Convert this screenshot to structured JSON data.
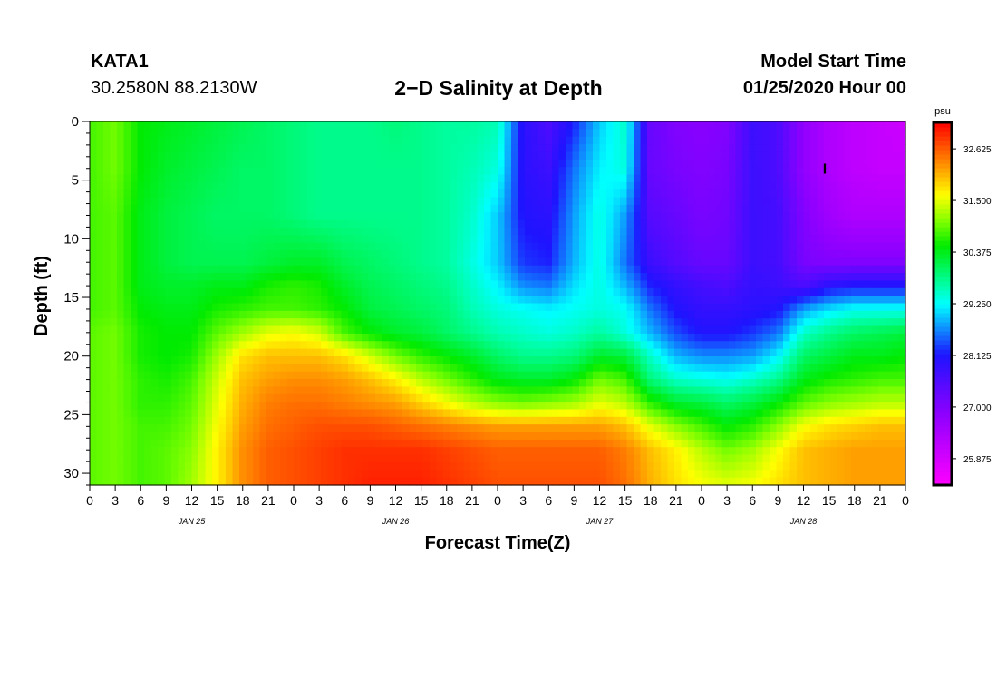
{
  "header": {
    "station": "KATA1",
    "coordinates": "30.2580N 88.2130W",
    "title": "2−D Salinity at Depth",
    "model_start_label": "Model Start Time",
    "model_start_value": "01/25/2020 Hour 00"
  },
  "chart_data": {
    "type": "heatmap",
    "title": "2−D Salinity at Depth",
    "xlabel": "Forecast Time(Z)",
    "ylabel": "Depth (ft)",
    "x_range_hours": [
      0,
      96
    ],
    "y_range_ft": [
      0,
      31
    ],
    "y_ticks": [
      0,
      5,
      10,
      15,
      20,
      25,
      30
    ],
    "x_tick_labels": [
      "0",
      "3",
      "6",
      "9",
      "12",
      "15",
      "18",
      "21",
      "0",
      "3",
      "6",
      "9",
      "12",
      "15",
      "18",
      "21",
      "0",
      "3",
      "6",
      "9",
      "12",
      "15",
      "18",
      "21",
      "0",
      "3",
      "6",
      "9",
      "12",
      "15",
      "18",
      "21",
      "0"
    ],
    "day_labels": [
      {
        "label": "JAN 25",
        "hour": 12
      },
      {
        "label": "JAN 26",
        "hour": 36
      },
      {
        "label": "JAN 27",
        "hour": 60
      },
      {
        "label": "JAN 28",
        "hour": 84
      }
    ],
    "colorbar": {
      "unit": "psu",
      "range": [
        25.3,
        33.2
      ],
      "tick_labels": [
        "32.625",
        "31.500",
        "30.375",
        "29.250",
        "28.125",
        "27.000",
        "25.875"
      ],
      "tick_values": [
        32.625,
        31.5,
        30.375,
        29.25,
        28.125,
        27.0,
        25.875
      ]
    },
    "time_hours": [
      0,
      3,
      6,
      9,
      12,
      15,
      18,
      21,
      24,
      27,
      30,
      33,
      36,
      39,
      42,
      45,
      48,
      51,
      54,
      57,
      60,
      63,
      66,
      69,
      72,
      75,
      78,
      81,
      84,
      87,
      90,
      93,
      96
    ],
    "depths_ft": [
      0,
      4,
      8,
      12,
      14,
      16,
      18,
      20,
      22,
      24,
      26,
      28,
      31
    ],
    "salinity_psu": [
      [
        30.8,
        31.0,
        30.5,
        30.4,
        30.3,
        30.2,
        30.1,
        30.0,
        29.9,
        29.8,
        29.8,
        29.8,
        29.9,
        29.8,
        29.7,
        29.7,
        29.6,
        28.0,
        27.6,
        28.2,
        29.0,
        29.5,
        27.3,
        27.0,
        26.9,
        27.0,
        27.8,
        27.6,
        26.8,
        26.4,
        26.2,
        26.1,
        26.0
      ],
      [
        30.8,
        31.0,
        30.5,
        30.3,
        30.2,
        30.1,
        30.0,
        30.0,
        29.9,
        29.8,
        29.8,
        29.8,
        29.8,
        29.8,
        29.7,
        29.6,
        29.4,
        28.0,
        27.8,
        28.6,
        29.2,
        29.4,
        27.3,
        27.1,
        27.0,
        27.1,
        27.8,
        27.6,
        26.8,
        26.4,
        26.2,
        26.1,
        26.1
      ],
      [
        30.8,
        30.9,
        30.4,
        30.2,
        30.1,
        30.0,
        30.0,
        30.0,
        29.9,
        29.8,
        29.8,
        29.8,
        29.8,
        29.8,
        29.7,
        29.5,
        29.0,
        28.1,
        28.0,
        28.8,
        29.4,
        28.8,
        27.5,
        27.3,
        27.1,
        27.2,
        27.8,
        27.7,
        27.0,
        26.6,
        26.4,
        26.4,
        26.4
      ],
      [
        30.8,
        30.9,
        30.4,
        30.2,
        30.1,
        30.1,
        30.1,
        30.2,
        30.3,
        30.3,
        30.1,
        30.0,
        29.9,
        29.8,
        29.7,
        29.4,
        29.0,
        28.3,
        28.2,
        28.9,
        29.4,
        28.6,
        27.8,
        27.5,
        27.3,
        27.3,
        27.8,
        27.7,
        27.1,
        27.0,
        27.0,
        27.0,
        27.0
      ],
      [
        30.8,
        30.9,
        30.4,
        30.3,
        30.3,
        30.4,
        30.4,
        30.6,
        30.7,
        30.6,
        30.3,
        30.1,
        30.0,
        29.9,
        29.8,
        29.5,
        29.2,
        28.7,
        28.6,
        29.1,
        29.4,
        28.9,
        28.2,
        27.9,
        27.7,
        27.6,
        27.9,
        27.8,
        27.6,
        28.0,
        28.1,
        28.1,
        28.1
      ],
      [
        30.8,
        30.9,
        30.5,
        30.4,
        30.4,
        30.6,
        30.7,
        30.8,
        30.8,
        30.7,
        30.5,
        30.2,
        30.1,
        30.0,
        29.9,
        29.6,
        29.4,
        29.3,
        29.2,
        29.3,
        29.4,
        29.3,
        28.6,
        28.1,
        27.9,
        27.9,
        28.0,
        28.1,
        28.8,
        29.1,
        29.3,
        29.3,
        29.3
      ],
      [
        30.9,
        31.0,
        30.6,
        30.5,
        30.5,
        30.9,
        31.2,
        31.5,
        31.6,
        31.4,
        30.8,
        30.5,
        30.3,
        30.2,
        30.0,
        29.8,
        29.6,
        29.5,
        29.4,
        29.5,
        29.7,
        29.4,
        28.9,
        28.4,
        28.1,
        28.1,
        28.3,
        28.6,
        29.5,
        29.8,
        30.0,
        30.1,
        30.2
      ],
      [
        30.9,
        31.0,
        30.6,
        30.5,
        30.6,
        31.2,
        31.8,
        32.0,
        32.0,
        32.0,
        31.8,
        31.4,
        31.0,
        30.7,
        30.5,
        30.3,
        30.0,
        29.8,
        29.8,
        29.9,
        30.3,
        30.2,
        29.5,
        28.9,
        28.7,
        28.7,
        28.8,
        29.2,
        30.0,
        30.2,
        30.4,
        30.4,
        30.5
      ],
      [
        30.9,
        31.0,
        30.7,
        30.6,
        30.8,
        31.4,
        32.0,
        32.2,
        32.3,
        32.3,
        32.2,
        32.0,
        31.7,
        31.3,
        31.0,
        30.7,
        30.4,
        30.3,
        30.3,
        30.5,
        31.0,
        30.8,
        29.9,
        29.5,
        29.4,
        29.3,
        29.5,
        29.8,
        30.4,
        30.6,
        30.7,
        30.8,
        30.8
      ],
      [
        30.9,
        31.0,
        30.7,
        30.7,
        30.9,
        31.5,
        32.1,
        32.4,
        32.5,
        32.5,
        32.4,
        32.3,
        32.2,
        31.9,
        31.6,
        31.3,
        31.1,
        31.0,
        31.1,
        31.2,
        31.5,
        31.3,
        30.7,
        30.3,
        30.2,
        30.0,
        30.2,
        30.5,
        30.9,
        31.1,
        31.2,
        31.3,
        31.3
      ],
      [
        30.9,
        31.0,
        30.8,
        30.8,
        31.0,
        31.6,
        32.2,
        32.5,
        32.6,
        32.7,
        32.7,
        32.7,
        32.6,
        32.5,
        32.4,
        32.3,
        32.2,
        32.2,
        32.2,
        32.2,
        32.2,
        32.0,
        31.5,
        31.1,
        30.8,
        30.5,
        30.7,
        31.1,
        31.6,
        31.8,
        31.9,
        32.0,
        32.0
      ],
      [
        30.9,
        31.0,
        30.8,
        30.9,
        31.1,
        31.7,
        32.3,
        32.6,
        32.7,
        32.8,
        32.9,
        32.9,
        32.9,
        32.9,
        32.8,
        32.7,
        32.6,
        32.6,
        32.6,
        32.6,
        32.6,
        32.4,
        32.0,
        31.7,
        31.3,
        31.0,
        31.2,
        31.6,
        32.0,
        32.1,
        32.2,
        32.2,
        32.2
      ],
      [
        30.9,
        31.0,
        30.8,
        30.9,
        31.2,
        31.7,
        32.3,
        32.6,
        32.7,
        32.8,
        32.9,
        33.0,
        33.0,
        33.0,
        32.9,
        32.8,
        32.7,
        32.7,
        32.7,
        32.7,
        32.7,
        32.5,
        32.1,
        31.8,
        31.6,
        31.5,
        31.6,
        31.8,
        32.0,
        32.1,
        32.2,
        32.2,
        32.2
      ]
    ],
    "marker": {
      "hour": 86.5,
      "depth_ft": 4,
      "label": "I"
    }
  }
}
